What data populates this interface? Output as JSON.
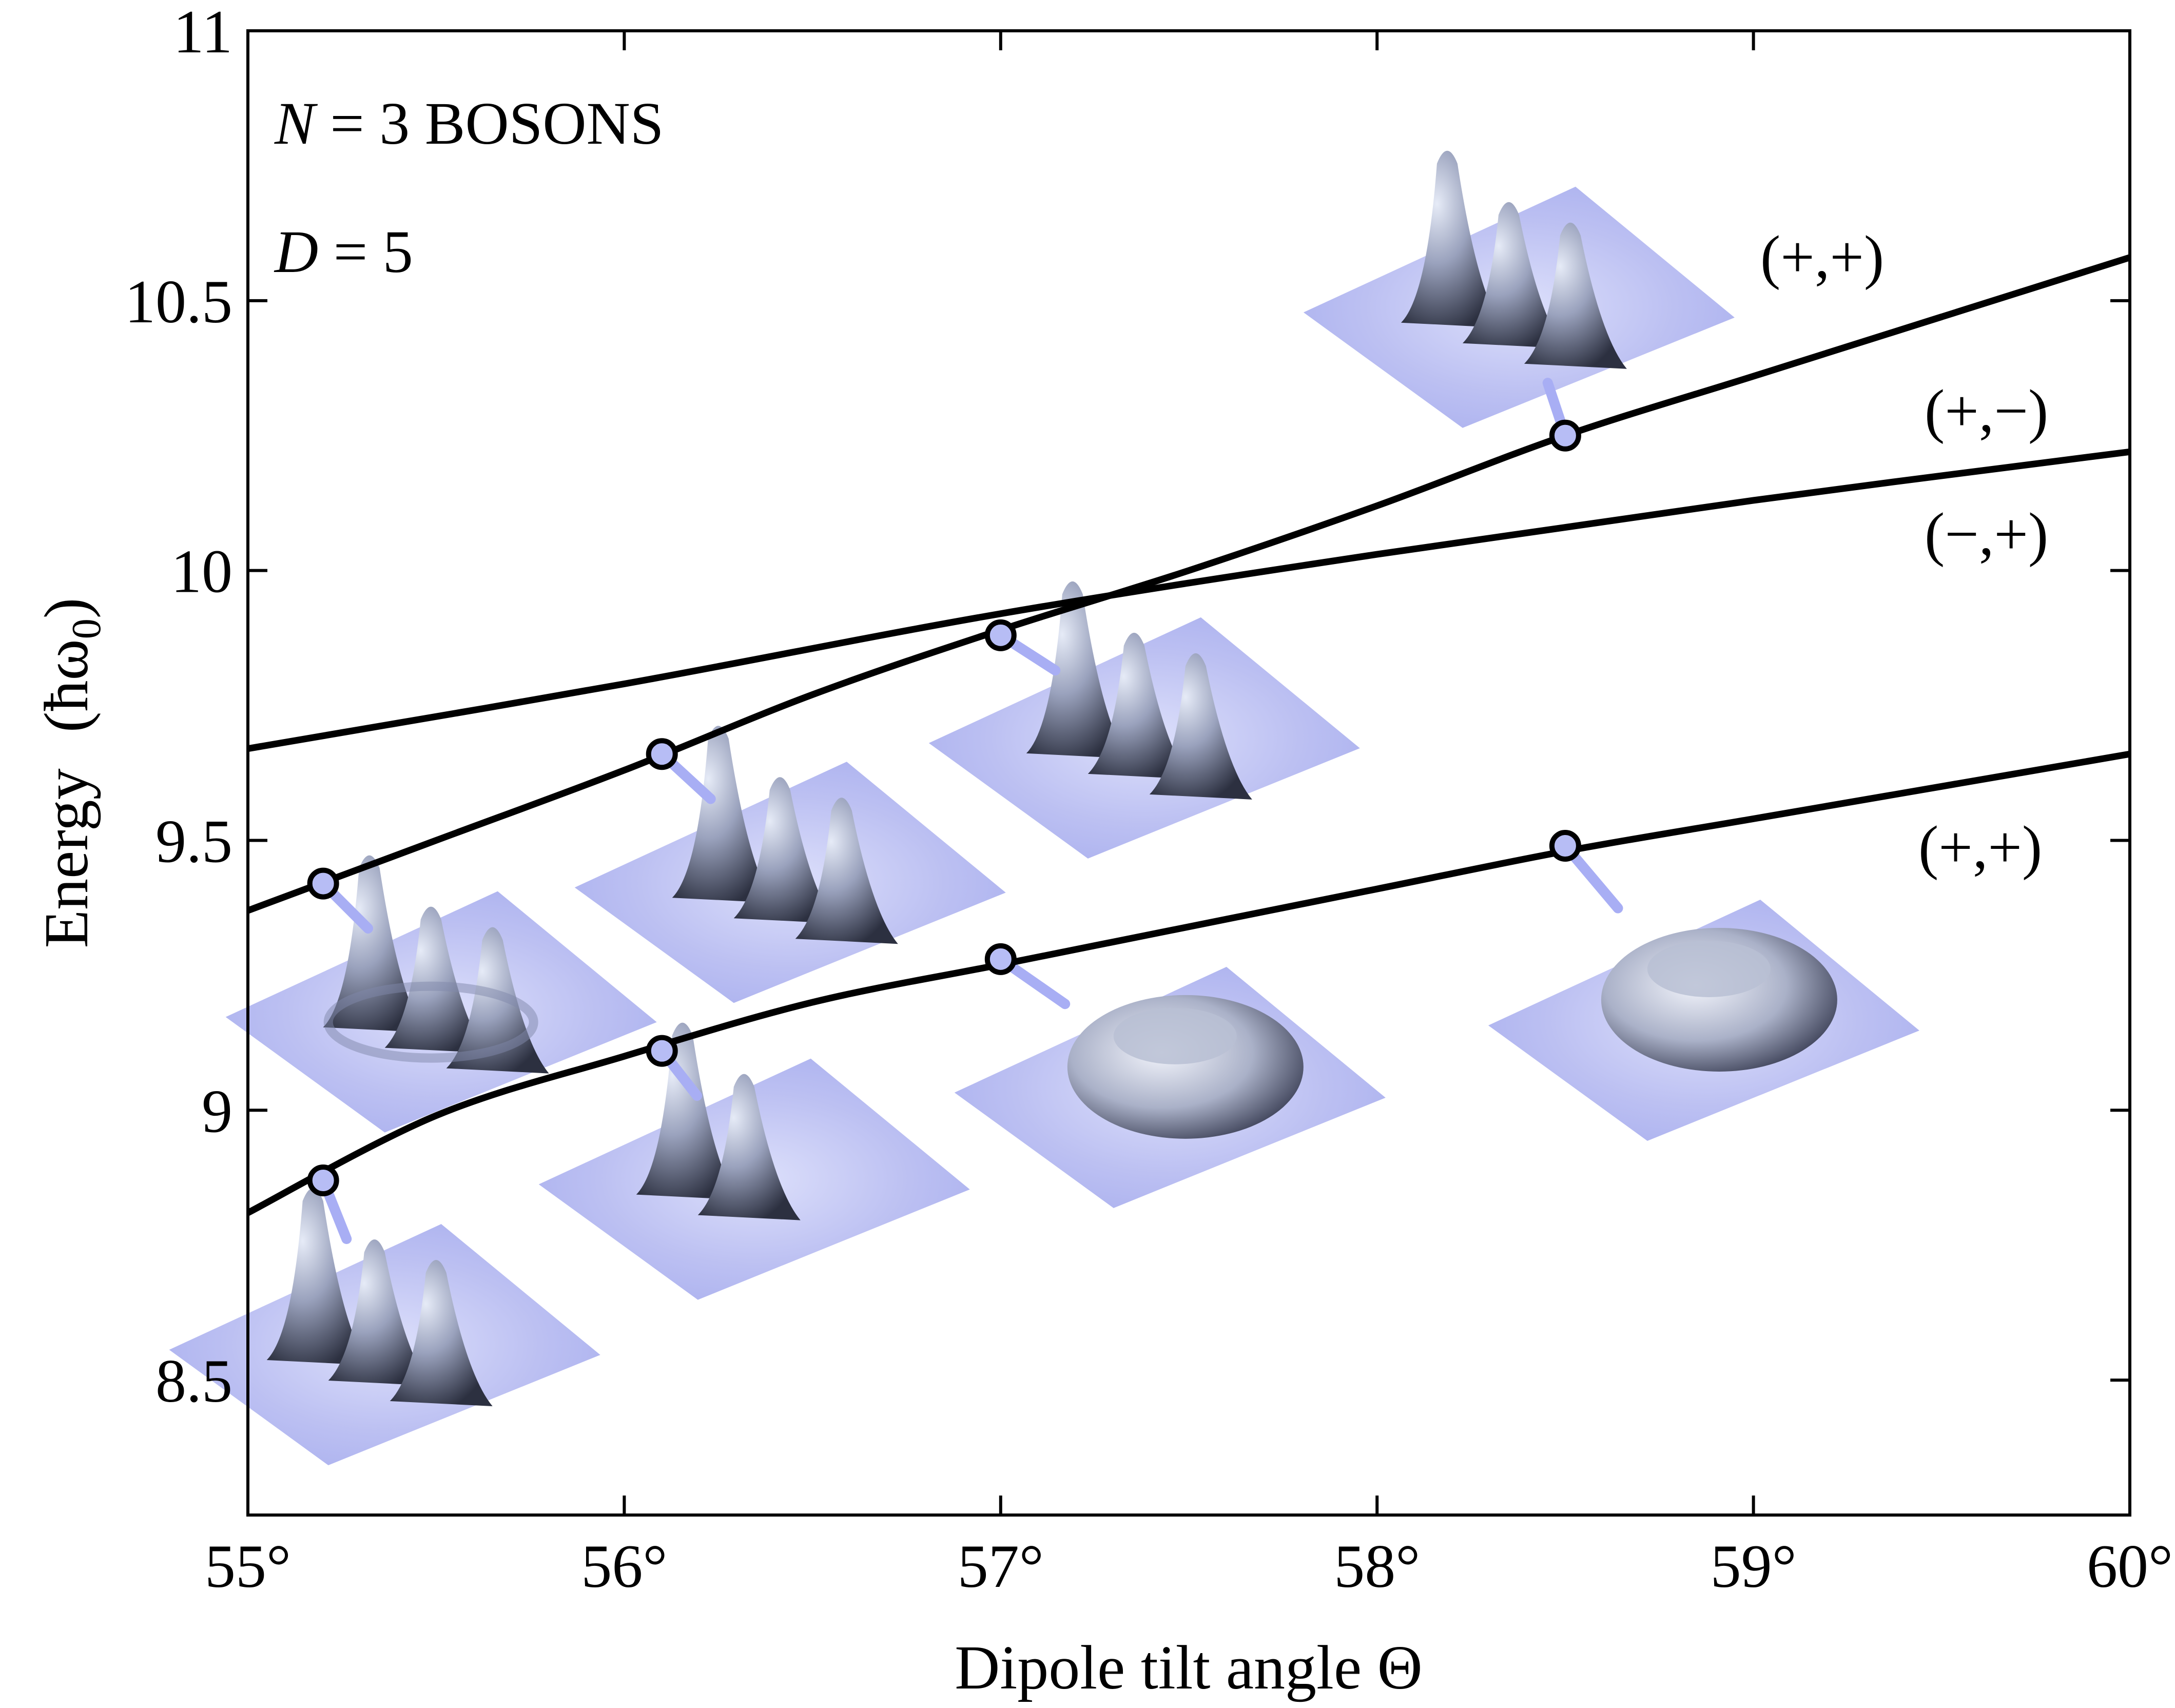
{
  "chart_data": {
    "type": "line",
    "xlabel": "Dipole tilt angle Θ",
    "ylabel": "Energy",
    "ylabel_unit": "(ħω",
    "ylabel_unit_sub": "0",
    "ylabel_unit_close": ")",
    "xlim": [
      55,
      60
    ],
    "ylim": [
      8.25,
      11
    ],
    "x_ticks": [
      55,
      56,
      57,
      58,
      59,
      60
    ],
    "x_tick_labels": [
      "55°",
      "56°",
      "57°",
      "58°",
      "59°",
      "60°"
    ],
    "y_ticks": [
      8.5,
      9,
      9.5,
      10,
      10.5,
      11
    ],
    "y_tick_labels": [
      "8.5",
      "9",
      "9.5",
      "10",
      "10.5",
      "11"
    ],
    "grid": false,
    "annotations": {
      "n_italic": "N",
      "n_rest": " = 3 BOSONS",
      "d_italic": "D",
      "d_rest": " = 5"
    },
    "series": [
      {
        "label": "(+,+)",
        "x": [
          55,
          55.5,
          56,
          56.5,
          57,
          57.5,
          58,
          58.5,
          59,
          59.5,
          60
        ],
        "y": [
          9.37,
          9.5,
          9.63,
          9.77,
          9.89,
          10.0,
          10.12,
          10.25,
          10.36,
          10.47,
          10.58
        ]
      },
      {
        "label": "(+,−)\n(−,+)",
        "label_line1": "(+,−)",
        "label_line2": "(−,+)",
        "x": [
          55,
          56,
          57,
          58,
          59,
          60
        ],
        "y": [
          9.67,
          9.79,
          9.92,
          10.03,
          10.13,
          10.22
        ]
      },
      {
        "label": "(+,+)",
        "x": [
          55,
          55.5,
          56,
          56.5,
          57,
          57.5,
          58,
          58.5,
          59,
          59.5,
          60
        ],
        "y": [
          8.81,
          8.99,
          9.1,
          9.2,
          9.27,
          9.34,
          9.41,
          9.48,
          9.54,
          9.6,
          9.66
        ]
      }
    ],
    "markers": [
      {
        "x": 55.2,
        "y": 9.42,
        "density": "three-peaks-ring"
      },
      {
        "x": 56.1,
        "y": 9.66,
        "density": "three-peaks"
      },
      {
        "x": 57.0,
        "y": 9.88,
        "density": "three-peaks"
      },
      {
        "x": 58.5,
        "y": 10.25,
        "density": "three-peaks"
      },
      {
        "x": 55.2,
        "y": 8.87,
        "density": "three-peaks"
      },
      {
        "x": 56.1,
        "y": 9.11,
        "density": "two-peaks"
      },
      {
        "x": 57.0,
        "y": 9.28,
        "density": "ring"
      },
      {
        "x": 58.5,
        "y": 9.49,
        "density": "ring"
      }
    ]
  }
}
